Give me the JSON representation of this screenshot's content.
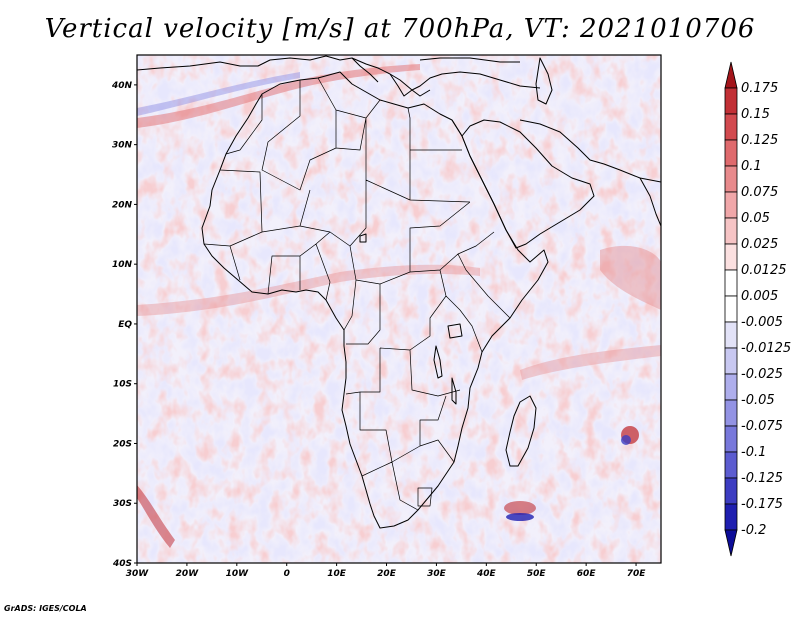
{
  "title": "Vertical velocity [m/s] at 700hPa, VT: 2021010706",
  "credit": "GrADS: IGES/COLA",
  "map": {
    "lon_range": [
      -30,
      75
    ],
    "lat_range": [
      -40,
      45
    ],
    "lon_ticks": [
      "30W",
      "20W",
      "10W",
      "0",
      "10E",
      "20E",
      "30E",
      "40E",
      "50E",
      "60E",
      "70E"
    ],
    "lat_ticks": [
      "40N",
      "30N",
      "20N",
      "10N",
      "EQ",
      "10S",
      "20S",
      "30S",
      "40S"
    ]
  },
  "colorbar": {
    "labels": [
      "0.175",
      "0.15",
      "0.125",
      "0.1",
      "0.075",
      "0.05",
      "0.025",
      "0.0125",
      "0.005",
      "-0.005",
      "-0.0125",
      "-0.025",
      "-0.05",
      "-0.075",
      "-0.1",
      "-0.125",
      "-0.175",
      "-0.2"
    ],
    "colors": [
      "#a3151b",
      "#c23036",
      "#d24a4f",
      "#df6a6d",
      "#e88a8c",
      "#f0a7a9",
      "#f6c4c5",
      "#fbe0e0",
      "#ffffff",
      "#ffffff",
      "#e2e2f7",
      "#c8c8f1",
      "#aeaeec",
      "#9393e4",
      "#7878db",
      "#5c5cd0",
      "#3d3dc2",
      "#1f1fb0",
      "#0c0c98"
    ]
  }
}
